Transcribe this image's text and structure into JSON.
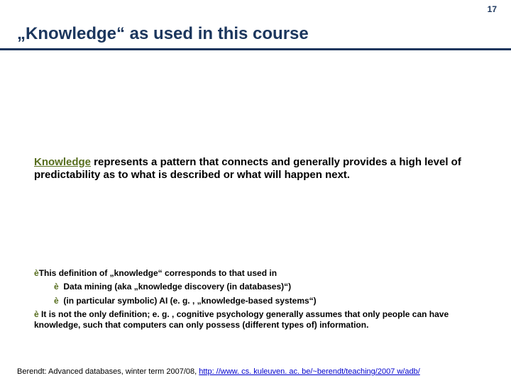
{
  "page_number": "17",
  "title": "„Knowledge“ as used in this course",
  "definition": {
    "keyword": "Knowledge",
    "rest": " represents a pattern that connects and generally provides a high level of predictability as to what is described or what will happen next."
  },
  "sub": {
    "lead": "This definition of „knowledge“ corresponds to that used in",
    "item1": "Data mining (aka „knowledge discovery (in databases)“)",
    "item2": "(in particular symbolic) AI (e. g. , „knowledge-based systems“)",
    "tail": "It is not the only definition; e. g. , cognitive psychology generally assumes that only people can have knowledge, such that computers can only possess (different types of) information."
  },
  "footer": {
    "prefix": "Berendt: Advanced databases, winter term 2007/08, ",
    "link": "http: //www. cs. kuleuven. ac. be/~berendt/teaching/2007 w/adb/"
  },
  "colors": {
    "brand": "#1b365d",
    "accent": "#566d1d",
    "link": "#0000cc",
    "bg": "#ffffff"
  },
  "arrow_glyph": "è"
}
